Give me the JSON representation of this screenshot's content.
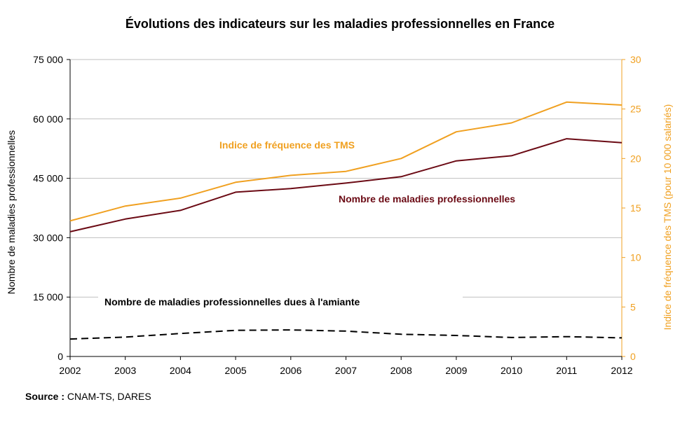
{
  "chart_data": {
    "type": "line",
    "title": "Évolutions des indicateurs sur les maladies professionnelles en France",
    "x": [
      2002,
      2003,
      2004,
      2005,
      2006,
      2007,
      2008,
      2009,
      2010,
      2011,
      2012
    ],
    "y_left": {
      "label": "Nombre de maladies professionnelles",
      "range": [
        0,
        75000
      ],
      "ticks": [
        "0",
        "15 000",
        "30 000",
        "45 000",
        "60 000",
        "75 000"
      ]
    },
    "y_right": {
      "label": "Indice de fréquence des TMS (pour 10 000 salariés)",
      "range": [
        0,
        30
      ],
      "ticks": [
        "0",
        "5",
        "10",
        "15",
        "20",
        "25",
        "30"
      ]
    },
    "grid": true,
    "series": [
      {
        "name": "Indice de fréquence des TMS",
        "axis": "right",
        "color": "#F0A020",
        "style": "solid",
        "values": [
          13.7,
          15.2,
          16.0,
          17.6,
          18.3,
          18.7,
          20.0,
          22.7,
          23.6,
          25.7,
          25.4
        ]
      },
      {
        "name": "Nombre de maladies professionnelles",
        "axis": "left",
        "color": "#6B0A14",
        "style": "solid",
        "values": [
          31500,
          34700,
          36900,
          41500,
          42400,
          43800,
          45400,
          49400,
          50700,
          55000,
          54000
        ]
      },
      {
        "name": "Nombre de maladies professionnelles dues à l'amiante",
        "axis": "left",
        "color": "#000000",
        "style": "dashed",
        "values": [
          4400,
          4900,
          5800,
          6600,
          6700,
          6400,
          5600,
          5300,
          4800,
          5000,
          4700
        ]
      }
    ]
  },
  "source": {
    "label": "Source :",
    "text": " CNAM-TS, DARES"
  }
}
